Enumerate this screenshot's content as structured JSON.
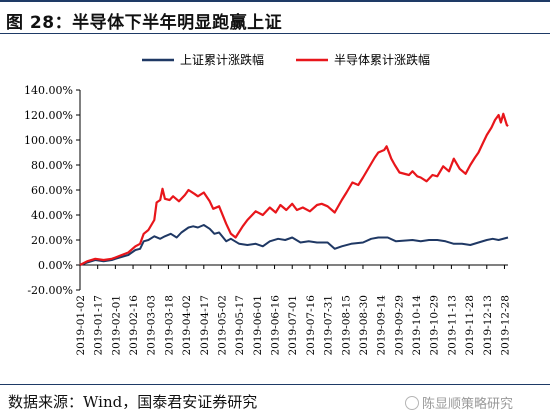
{
  "figure": {
    "title": "图 28：半导体下半年明显跑赢上证"
  },
  "footer": {
    "source": "数据来源：Wind，国泰君安证券研究",
    "watermark": "陈显顺策略研究"
  },
  "colors": {
    "sse": "#1f3864",
    "semi": "#e8161b",
    "axis": "#000000"
  },
  "chart_data": {
    "type": "line",
    "title": "",
    "xlabel": "",
    "ylabel": "",
    "ylim": [
      -0.2,
      1.4
    ],
    "y_ticks": [
      "-20.00%",
      "0.00%",
      "20.00%",
      "40.00%",
      "60.00%",
      "80.00%",
      "100.00%",
      "120.00%",
      "140.00%"
    ],
    "x_ticks": [
      "2019-01-02",
      "2019-01-17",
      "2019-02-01",
      "2019-02-16",
      "2019-03-03",
      "2019-03-18",
      "2019-04-02",
      "2019-04-17",
      "2019-05-02",
      "2019-05-17",
      "2019-06-01",
      "2019-06-16",
      "2019-07-01",
      "2019-07-16",
      "2019-07-31",
      "2019-08-15",
      "2019-08-30",
      "2019-09-14",
      "2019-09-29",
      "2019-10-14",
      "2019-10-29",
      "2019-11-13",
      "2019-11-28",
      "2019-12-13",
      "2019-12-28"
    ],
    "legend_position": "top",
    "grid": false,
    "series": [
      {
        "name": "上证累计涨跌幅",
        "color_key": "sse",
        "points": [
          [
            "2019-01-02",
            0.0
          ],
          [
            "2019-01-08",
            0.02
          ],
          [
            "2019-01-15",
            0.04
          ],
          [
            "2019-01-22",
            0.03
          ],
          [
            "2019-01-29",
            0.04
          ],
          [
            "2019-02-01",
            0.05
          ],
          [
            "2019-02-12",
            0.08
          ],
          [
            "2019-02-18",
            0.12
          ],
          [
            "2019-02-22",
            0.13
          ],
          [
            "2019-02-25",
            0.19
          ],
          [
            "2019-03-01",
            0.2
          ],
          [
            "2019-03-06",
            0.23
          ],
          [
            "2019-03-11",
            0.21
          ],
          [
            "2019-03-15",
            0.23
          ],
          [
            "2019-03-20",
            0.25
          ],
          [
            "2019-03-25",
            0.22
          ],
          [
            "2019-03-29",
            0.26
          ],
          [
            "2019-04-04",
            0.3
          ],
          [
            "2019-04-08",
            0.31
          ],
          [
            "2019-04-12",
            0.3
          ],
          [
            "2019-04-17",
            0.32
          ],
          [
            "2019-04-22",
            0.29
          ],
          [
            "2019-04-26",
            0.25
          ],
          [
            "2019-04-30",
            0.26
          ],
          [
            "2019-05-06",
            0.19
          ],
          [
            "2019-05-10",
            0.21
          ],
          [
            "2019-05-17",
            0.17
          ],
          [
            "2019-05-24",
            0.16
          ],
          [
            "2019-05-31",
            0.17
          ],
          [
            "2019-06-06",
            0.15
          ],
          [
            "2019-06-12",
            0.19
          ],
          [
            "2019-06-19",
            0.21
          ],
          [
            "2019-06-25",
            0.2
          ],
          [
            "2019-07-01",
            0.22
          ],
          [
            "2019-07-08",
            0.18
          ],
          [
            "2019-07-15",
            0.19
          ],
          [
            "2019-07-22",
            0.18
          ],
          [
            "2019-07-31",
            0.18
          ],
          [
            "2019-08-06",
            0.13
          ],
          [
            "2019-08-12",
            0.15
          ],
          [
            "2019-08-20",
            0.17
          ],
          [
            "2019-08-30",
            0.18
          ],
          [
            "2019-09-06",
            0.21
          ],
          [
            "2019-09-12",
            0.22
          ],
          [
            "2019-09-20",
            0.22
          ],
          [
            "2019-09-27",
            0.19
          ],
          [
            "2019-10-11",
            0.2
          ],
          [
            "2019-10-18",
            0.19
          ],
          [
            "2019-10-25",
            0.2
          ],
          [
            "2019-11-01",
            0.2
          ],
          [
            "2019-11-08",
            0.19
          ],
          [
            "2019-11-15",
            0.17
          ],
          [
            "2019-11-22",
            0.17
          ],
          [
            "2019-11-29",
            0.16
          ],
          [
            "2019-12-06",
            0.18
          ],
          [
            "2019-12-13",
            0.2
          ],
          [
            "2019-12-18",
            0.21
          ],
          [
            "2019-12-23",
            0.2
          ],
          [
            "2019-12-31",
            0.22
          ]
        ]
      },
      {
        "name": "半导体累计涨跌幅",
        "color_key": "semi",
        "points": [
          [
            "2019-01-02",
            0.0
          ],
          [
            "2019-01-08",
            0.03
          ],
          [
            "2019-01-15",
            0.05
          ],
          [
            "2019-01-22",
            0.04
          ],
          [
            "2019-01-29",
            0.05
          ],
          [
            "2019-02-01",
            0.06
          ],
          [
            "2019-02-12",
            0.1
          ],
          [
            "2019-02-18",
            0.15
          ],
          [
            "2019-02-22",
            0.17
          ],
          [
            "2019-02-25",
            0.25
          ],
          [
            "2019-03-01",
            0.28
          ],
          [
            "2019-03-06",
            0.36
          ],
          [
            "2019-03-08",
            0.5
          ],
          [
            "2019-03-11",
            0.52
          ],
          [
            "2019-03-13",
            0.61
          ],
          [
            "2019-03-15",
            0.53
          ],
          [
            "2019-03-19",
            0.52
          ],
          [
            "2019-03-22",
            0.55
          ],
          [
            "2019-03-27",
            0.51
          ],
          [
            "2019-04-01",
            0.56
          ],
          [
            "2019-04-04",
            0.6
          ],
          [
            "2019-04-09",
            0.57
          ],
          [
            "2019-04-12",
            0.55
          ],
          [
            "2019-04-17",
            0.58
          ],
          [
            "2019-04-22",
            0.51
          ],
          [
            "2019-04-25",
            0.45
          ],
          [
            "2019-04-30",
            0.47
          ],
          [
            "2019-05-06",
            0.33
          ],
          [
            "2019-05-10",
            0.25
          ],
          [
            "2019-05-14",
            0.22
          ],
          [
            "2019-05-20",
            0.31
          ],
          [
            "2019-05-24",
            0.36
          ],
          [
            "2019-05-31",
            0.43
          ],
          [
            "2019-06-06",
            0.4
          ],
          [
            "2019-06-12",
            0.46
          ],
          [
            "2019-06-17",
            0.42
          ],
          [
            "2019-06-21",
            0.48
          ],
          [
            "2019-06-26",
            0.44
          ],
          [
            "2019-07-01",
            0.49
          ],
          [
            "2019-07-05",
            0.44
          ],
          [
            "2019-07-10",
            0.46
          ],
          [
            "2019-07-16",
            0.43
          ],
          [
            "2019-07-22",
            0.48
          ],
          [
            "2019-07-26",
            0.49
          ],
          [
            "2019-07-31",
            0.47
          ],
          [
            "2019-08-06",
            0.42
          ],
          [
            "2019-08-12",
            0.52
          ],
          [
            "2019-08-16",
            0.58
          ],
          [
            "2019-08-21",
            0.66
          ],
          [
            "2019-08-26",
            0.64
          ],
          [
            "2019-08-30",
            0.7
          ],
          [
            "2019-09-04",
            0.78
          ],
          [
            "2019-09-09",
            0.86
          ],
          [
            "2019-09-12",
            0.9
          ],
          [
            "2019-09-17",
            0.92
          ],
          [
            "2019-09-19",
            0.95
          ],
          [
            "2019-09-23",
            0.85
          ],
          [
            "2019-09-26",
            0.8
          ],
          [
            "2019-09-30",
            0.74
          ],
          [
            "2019-10-08",
            0.72
          ],
          [
            "2019-10-11",
            0.75
          ],
          [
            "2019-10-15",
            0.71
          ],
          [
            "2019-10-18",
            0.7
          ],
          [
            "2019-10-23",
            0.67
          ],
          [
            "2019-10-28",
            0.72
          ],
          [
            "2019-11-01",
            0.71
          ],
          [
            "2019-11-06",
            0.79
          ],
          [
            "2019-11-11",
            0.75
          ],
          [
            "2019-11-15",
            0.85
          ],
          [
            "2019-11-20",
            0.77
          ],
          [
            "2019-11-25",
            0.73
          ],
          [
            "2019-11-29",
            0.8
          ],
          [
            "2019-12-03",
            0.86
          ],
          [
            "2019-12-06",
            0.9
          ],
          [
            "2019-12-10",
            0.98
          ],
          [
            "2019-12-13",
            1.04
          ],
          [
            "2019-12-17",
            1.1
          ],
          [
            "2019-12-20",
            1.16
          ],
          [
            "2019-12-23",
            1.2
          ],
          [
            "2019-12-25",
            1.14
          ],
          [
            "2019-12-27",
            1.21
          ],
          [
            "2019-12-30",
            1.12
          ],
          [
            "2019-12-31",
            1.11
          ]
        ]
      }
    ]
  }
}
